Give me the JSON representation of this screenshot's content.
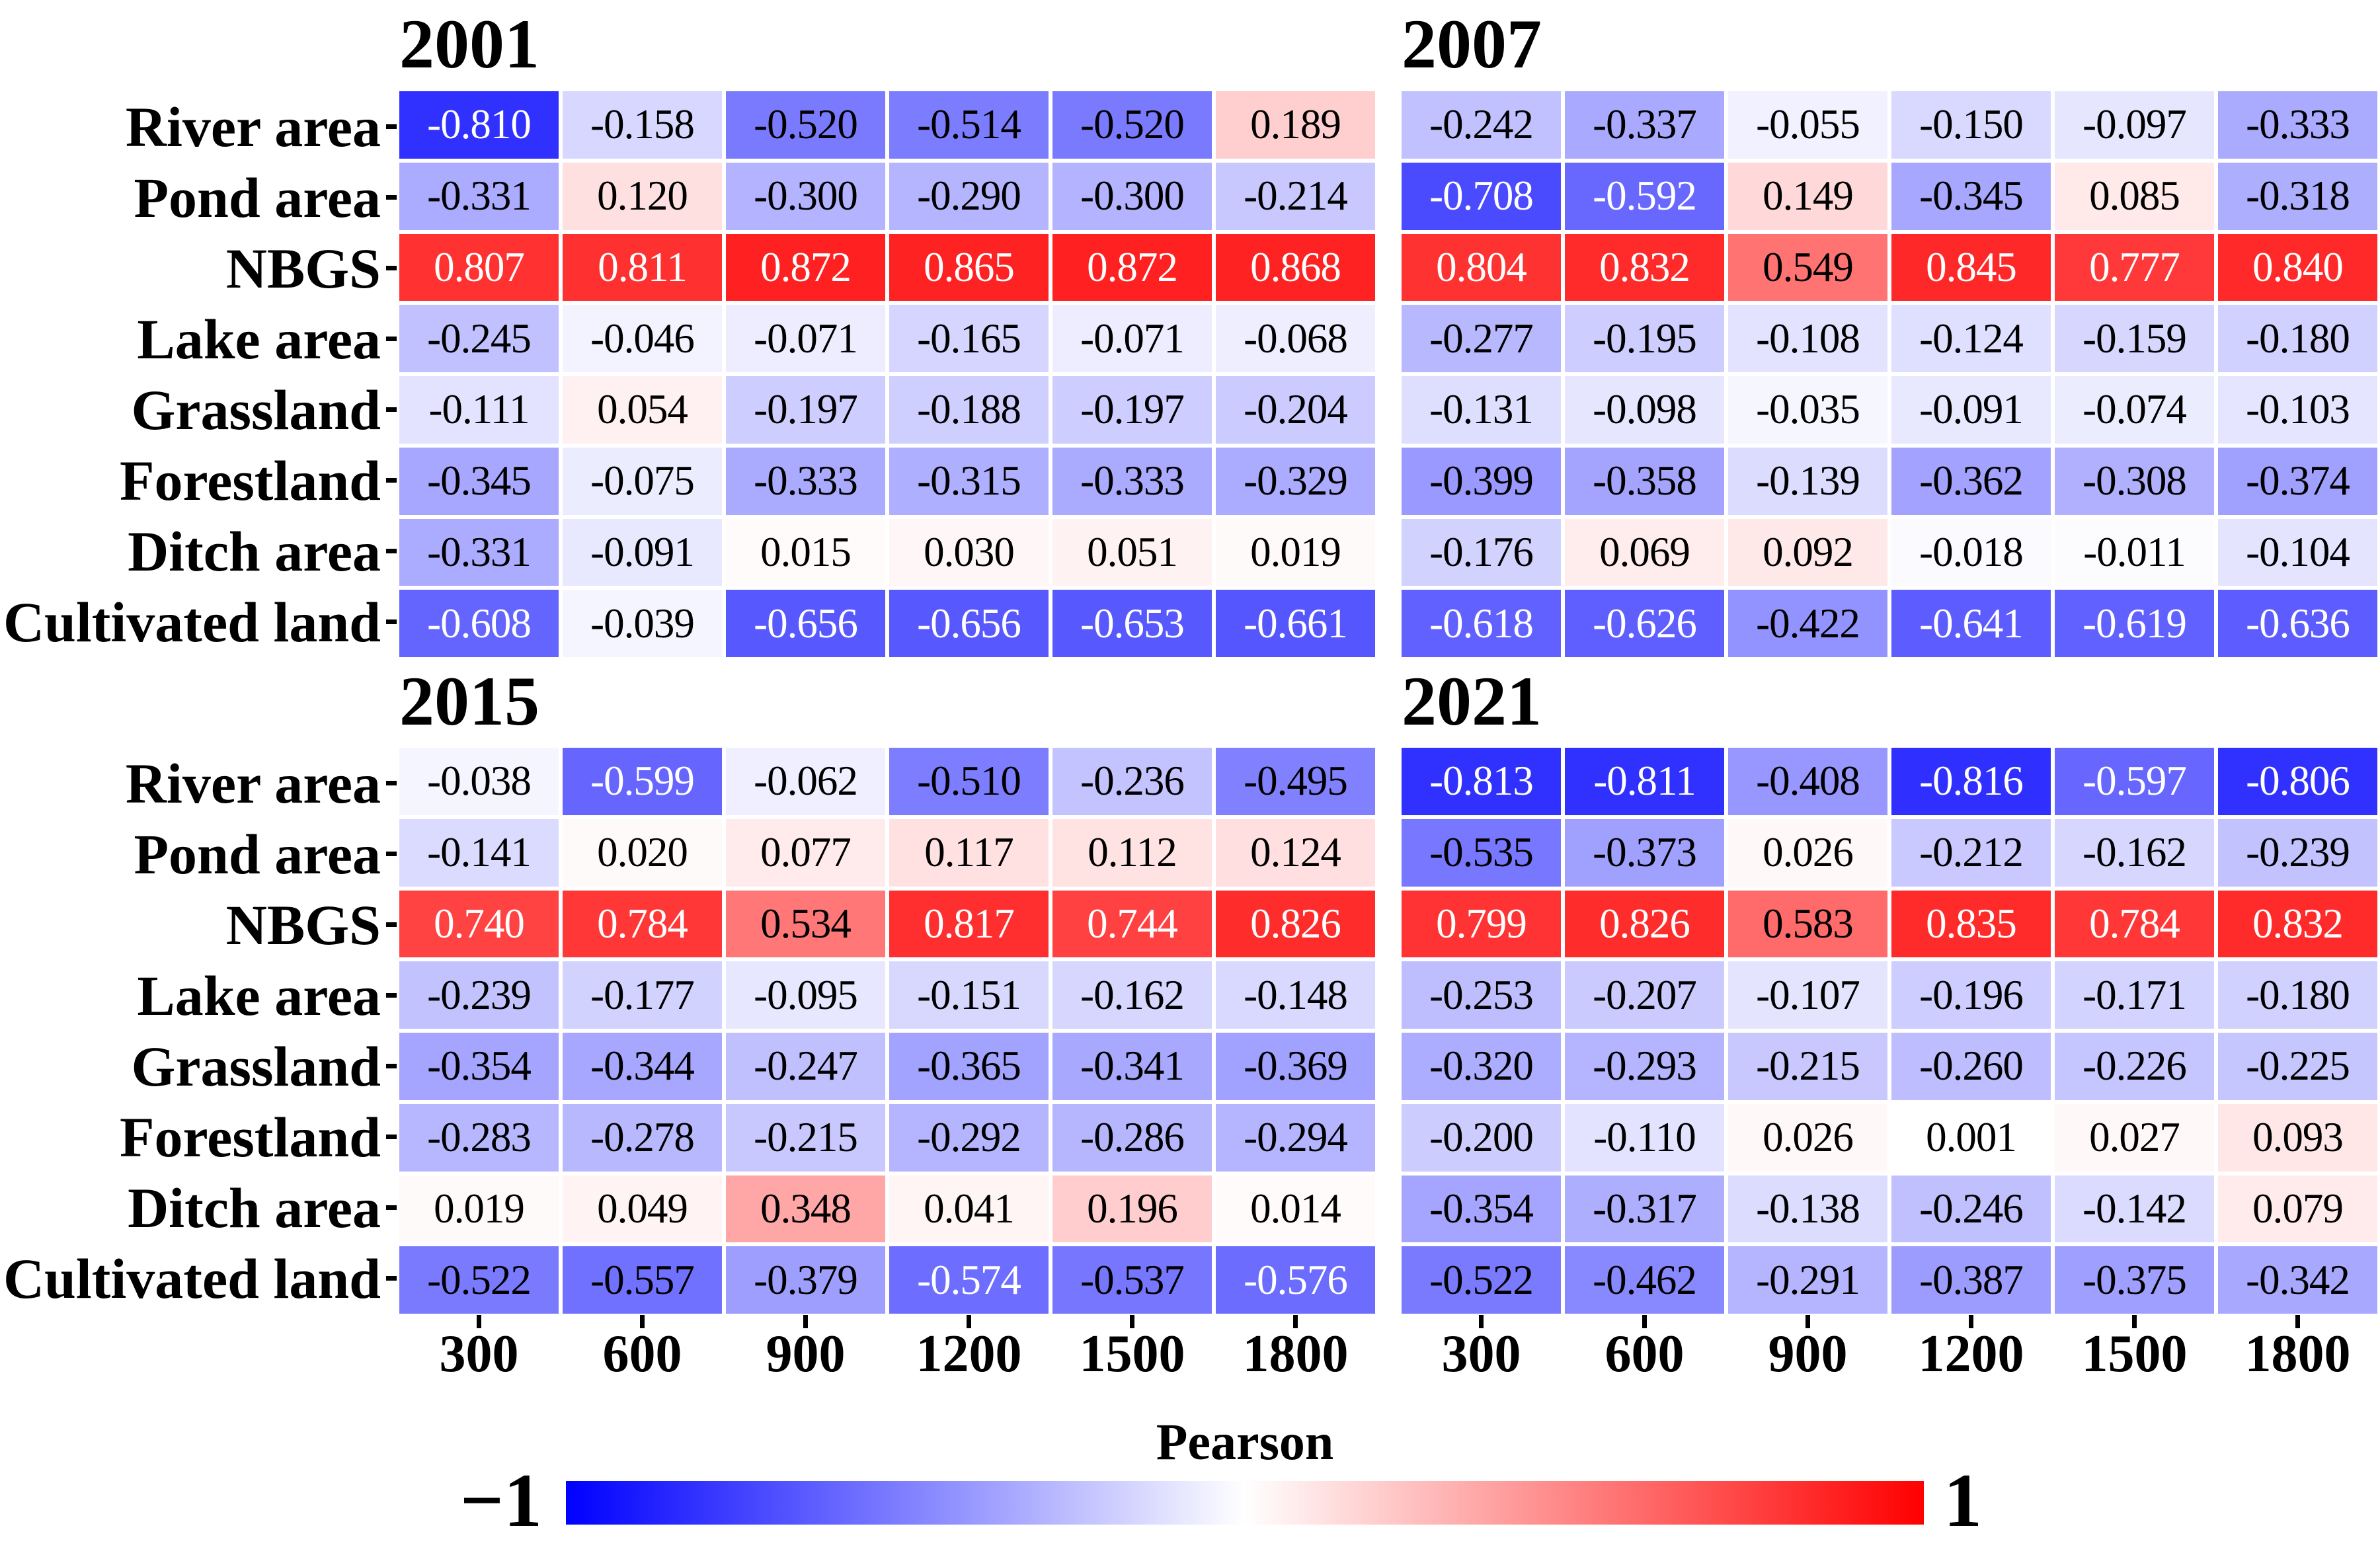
{
  "colorbar": {
    "title": "Pearson",
    "min_label": "−1",
    "max_label": "1",
    "colormap": "bwr",
    "left_color": "#0000ff",
    "mid_color": "#ffffff",
    "right_color": "#ff0000"
  },
  "chart_data": [
    {
      "type": "heatmap",
      "title": "2001",
      "rows": [
        "River area",
        "Pond area",
        "NBGS",
        "Lake area",
        "Grassland",
        "Forestland",
        "Ditch area",
        "Cultivated land"
      ],
      "columns": [
        "300",
        "600",
        "900",
        "1200",
        "1500",
        "1800"
      ],
      "vmin": -1,
      "vmax": 1,
      "values": [
        [
          -0.81,
          -0.158,
          -0.52,
          -0.514,
          -0.52,
          0.189
        ],
        [
          -0.331,
          0.12,
          -0.3,
          -0.29,
          -0.3,
          -0.214
        ],
        [
          0.807,
          0.811,
          0.872,
          0.865,
          0.872,
          0.868
        ],
        [
          -0.245,
          -0.046,
          -0.071,
          -0.165,
          -0.071,
          -0.068
        ],
        [
          -0.111,
          0.054,
          -0.197,
          -0.188,
          -0.197,
          -0.204
        ],
        [
          -0.345,
          -0.075,
          -0.333,
          -0.315,
          -0.333,
          -0.329
        ],
        [
          -0.331,
          -0.091,
          0.015,
          0.03,
          0.051,
          0.019
        ],
        [
          -0.608,
          -0.039,
          -0.656,
          -0.656,
          -0.653,
          -0.661
        ]
      ]
    },
    {
      "type": "heatmap",
      "title": "2007",
      "rows": [
        "River area",
        "Pond area",
        "NBGS",
        "Lake area",
        "Grassland",
        "Forestland",
        "Ditch area",
        "Cultivated land"
      ],
      "columns": [
        "300",
        "600",
        "900",
        "1200",
        "1500",
        "1800"
      ],
      "vmin": -1,
      "vmax": 1,
      "values": [
        [
          -0.242,
          -0.337,
          -0.055,
          -0.15,
          -0.097,
          -0.333
        ],
        [
          -0.708,
          -0.592,
          0.149,
          -0.345,
          0.085,
          -0.318
        ],
        [
          0.804,
          0.832,
          0.549,
          0.845,
          0.777,
          0.84
        ],
        [
          -0.277,
          -0.195,
          -0.108,
          -0.124,
          -0.159,
          -0.18
        ],
        [
          -0.131,
          -0.098,
          -0.035,
          -0.091,
          -0.074,
          -0.103
        ],
        [
          -0.399,
          -0.358,
          -0.139,
          -0.362,
          -0.308,
          -0.374
        ],
        [
          -0.176,
          0.069,
          0.092,
          -0.018,
          -0.011,
          -0.104
        ],
        [
          -0.618,
          -0.626,
          -0.422,
          -0.641,
          -0.619,
          -0.636
        ]
      ]
    },
    {
      "type": "heatmap",
      "title": "2015",
      "rows": [
        "River area",
        "Pond area",
        "NBGS",
        "Lake area",
        "Grassland",
        "Forestland",
        "Ditch area",
        "Cultivated land"
      ],
      "columns": [
        "300",
        "600",
        "900",
        "1200",
        "1500",
        "1800"
      ],
      "vmin": -1,
      "vmax": 1,
      "values": [
        [
          -0.038,
          -0.599,
          -0.062,
          -0.51,
          -0.236,
          -0.495
        ],
        [
          -0.141,
          0.02,
          0.077,
          0.117,
          0.112,
          0.124
        ],
        [
          0.74,
          0.784,
          0.534,
          0.817,
          0.744,
          0.826
        ],
        [
          -0.239,
          -0.177,
          -0.095,
          -0.151,
          -0.162,
          -0.148
        ],
        [
          -0.354,
          -0.344,
          -0.247,
          -0.365,
          -0.341,
          -0.369
        ],
        [
          -0.283,
          -0.278,
          -0.215,
          -0.292,
          -0.286,
          -0.294
        ],
        [
          0.019,
          0.049,
          0.348,
          0.041,
          0.196,
          0.014
        ],
        [
          -0.522,
          -0.557,
          -0.379,
          -0.574,
          -0.537,
          -0.576
        ]
      ]
    },
    {
      "type": "heatmap",
      "title": "2021",
      "rows": [
        "River area",
        "Pond area",
        "NBGS",
        "Lake area",
        "Grassland",
        "Forestland",
        "Ditch area",
        "Cultivated land"
      ],
      "columns": [
        "300",
        "600",
        "900",
        "1200",
        "1500",
        "1800"
      ],
      "vmin": -1,
      "vmax": 1,
      "values": [
        [
          -0.813,
          -0.811,
          -0.408,
          -0.816,
          -0.597,
          -0.806
        ],
        [
          -0.535,
          -0.373,
          0.026,
          -0.212,
          -0.162,
          -0.239
        ],
        [
          0.799,
          0.826,
          0.583,
          0.835,
          0.784,
          0.832
        ],
        [
          -0.253,
          -0.207,
          -0.107,
          -0.196,
          -0.171,
          -0.18
        ],
        [
          -0.32,
          -0.293,
          -0.215,
          -0.26,
          -0.226,
          -0.225
        ],
        [
          -0.2,
          -0.11,
          0.026,
          0.001,
          0.027,
          0.093
        ],
        [
          -0.354,
          -0.317,
          -0.138,
          -0.246,
          -0.142,
          0.079
        ],
        [
          -0.522,
          -0.462,
          -0.291,
          -0.387,
          -0.375,
          -0.342
        ]
      ]
    }
  ]
}
